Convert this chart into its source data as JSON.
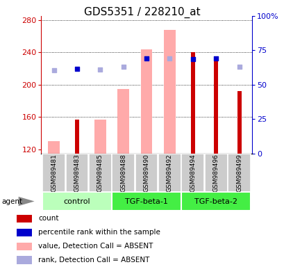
{
  "title": "GDS5351 / 228210_at",
  "samples": [
    "GSM989481",
    "GSM989483",
    "GSM989485",
    "GSM989488",
    "GSM989490",
    "GSM989492",
    "GSM989494",
    "GSM989496",
    "GSM989499"
  ],
  "ylim_left": [
    115,
    285
  ],
  "yticks_left": [
    120,
    160,
    200,
    240,
    280
  ],
  "yticks_right": [
    0,
    25,
    50,
    75,
    100
  ],
  "yticklabels_right": [
    "0",
    "25",
    "50",
    "75",
    "100%"
  ],
  "bars_count": [
    null,
    157,
    null,
    null,
    null,
    null,
    240,
    235,
    192
  ],
  "bars_value_absent": [
    130,
    null,
    157,
    195,
    244,
    268,
    null,
    null,
    null
  ],
  "markers_rank_present": [
    null,
    220,
    null,
    null,
    233,
    null,
    232,
    233,
    null
  ],
  "markers_rank_absent": [
    218,
    null,
    219,
    222,
    233,
    233,
    null,
    null,
    222
  ],
  "bars_count_color": "#cc0000",
  "bars_value_absent_color": "#ffaaaa",
  "markers_rank_present_color": "#0000cc",
  "markers_rank_absent_color": "#aaaadd",
  "title_fontsize": 11,
  "axis_color_left": "#cc0000",
  "axis_color_right": "#0000cc",
  "group_band_color_light": "#bbffbb",
  "group_band_color_dark": "#44ee44",
  "sample_box_color": "#cccccc",
  "legend_labels": [
    "count",
    "percentile rank within the sample",
    "value, Detection Call = ABSENT",
    "rank, Detection Call = ABSENT"
  ],
  "legend_colors": [
    "#cc0000",
    "#0000cc",
    "#ffaaaa",
    "#aaaadd"
  ],
  "groups_info": [
    {
      "start": 0,
      "end": 2,
      "color": "#bbffbb",
      "label": "control"
    },
    {
      "start": 3,
      "end": 5,
      "color": "#44ee44",
      "label": "TGF-beta-1"
    },
    {
      "start": 6,
      "end": 8,
      "color": "#44ee44",
      "label": "TGF-beta-2"
    }
  ]
}
